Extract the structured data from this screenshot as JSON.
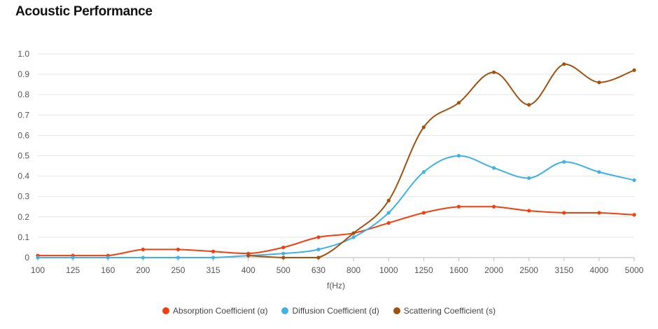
{
  "title": "Acoustic Performance",
  "chart_data": {
    "type": "line",
    "title": "Acoustic Performance",
    "xlabel": "f(Hz)",
    "ylabel": "",
    "categories": [
      "100",
      "125",
      "160",
      "200",
      "250",
      "315",
      "400",
      "500",
      "630",
      "800",
      "1000",
      "1250",
      "1600",
      "2000",
      "2500",
      "3150",
      "4000",
      "5000"
    ],
    "ylim": [
      0,
      1.0
    ],
    "yticks": [
      "0",
      "0.1",
      "0.2",
      "0.3",
      "0.4",
      "0.5",
      "0.6",
      "0.7",
      "0.8",
      "0.9",
      "1.0"
    ],
    "grid": true,
    "legend_position": "bottom",
    "series": [
      {
        "name": "Absorption Coefficient (α)",
        "color": "#f0400f",
        "values": [
          0.01,
          0.01,
          0.01,
          0.04,
          0.04,
          0.03,
          0.02,
          0.05,
          0.1,
          0.12,
          0.17,
          0.22,
          0.25,
          0.25,
          0.23,
          0.22,
          0.22,
          0.21
        ]
      },
      {
        "name": "Diffusion Coefficient (d)",
        "color": "#3fb1e3",
        "values": [
          0,
          0,
          0,
          0,
          0,
          0,
          0.01,
          0.02,
          0.04,
          0.1,
          0.22,
          0.42,
          0.5,
          0.44,
          0.39,
          0.47,
          0.42,
          0.38
        ]
      },
      {
        "name": "Scattering Coefficient (s)",
        "color": "#a0520f",
        "values": [
          null,
          null,
          null,
          null,
          null,
          null,
          0.01,
          0,
          0,
          0.12,
          0.28,
          0.64,
          0.76,
          0.91,
          0.75,
          0.95,
          0.86,
          0.92
        ]
      }
    ]
  }
}
